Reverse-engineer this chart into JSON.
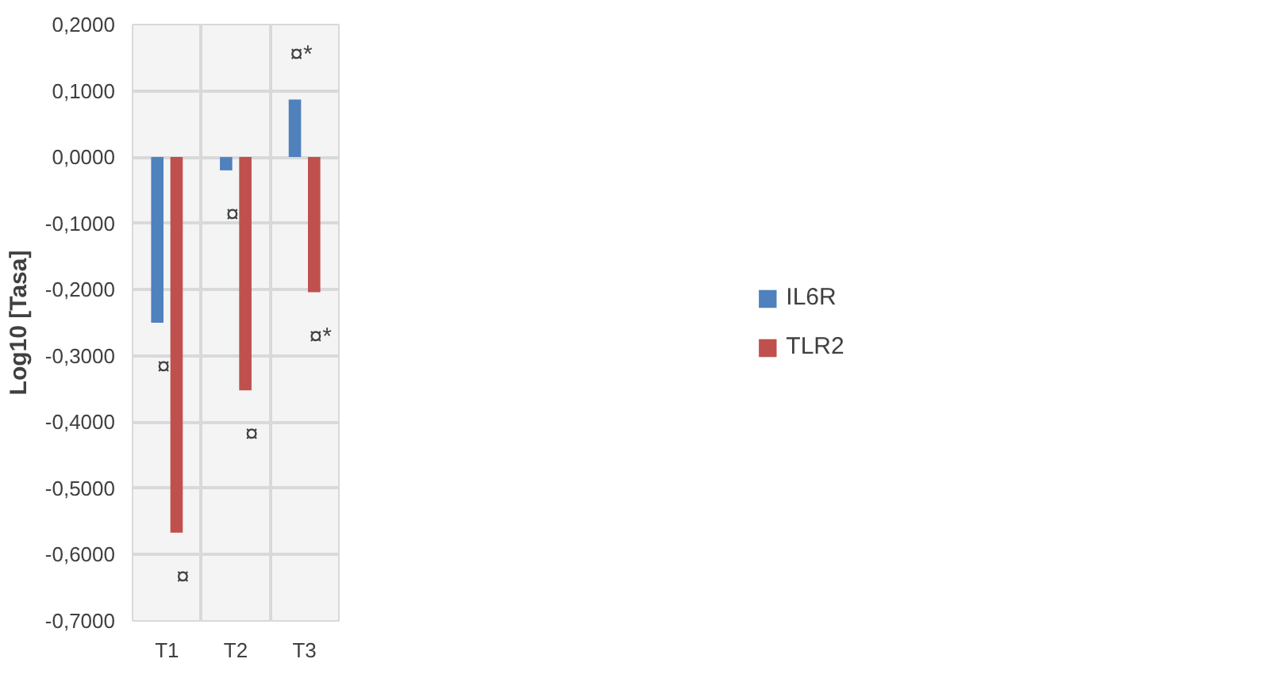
{
  "chart_data": {
    "type": "bar",
    "ylabel": "Log10 [Tasa]",
    "categories": [
      "T1",
      "T2",
      "T3"
    ],
    "series": [
      {
        "name": "IL6R",
        "color": "#4f81bd",
        "values": [
          -0.25,
          -0.02,
          0.087
        ]
      },
      {
        "name": "TLR2",
        "color": "#c0504d",
        "values": [
          -0.567,
          -0.352,
          -0.204
        ]
      }
    ],
    "ylim": [
      -0.7,
      0.2
    ],
    "yticks": [
      {
        "value": -0.7,
        "label": "-0,7000"
      },
      {
        "value": -0.6,
        "label": "-0,6000"
      },
      {
        "value": -0.5,
        "label": "-0,5000"
      },
      {
        "value": -0.4,
        "label": "-0,4000"
      },
      {
        "value": -0.3,
        "label": "-0,3000"
      },
      {
        "value": -0.2,
        "label": "-0,2000"
      },
      {
        "value": -0.1,
        "label": "-0,1000"
      },
      {
        "value": 0,
        "label": "0,0000"
      },
      {
        "value": 0.1,
        "label": "0,1000"
      },
      {
        "value": 0.2,
        "label": "0,2000"
      }
    ],
    "annotations": [
      "¤",
      "¤",
      "¤",
      "¤",
      "¤*",
      "¤*"
    ],
    "grid": true,
    "legend": "right"
  }
}
